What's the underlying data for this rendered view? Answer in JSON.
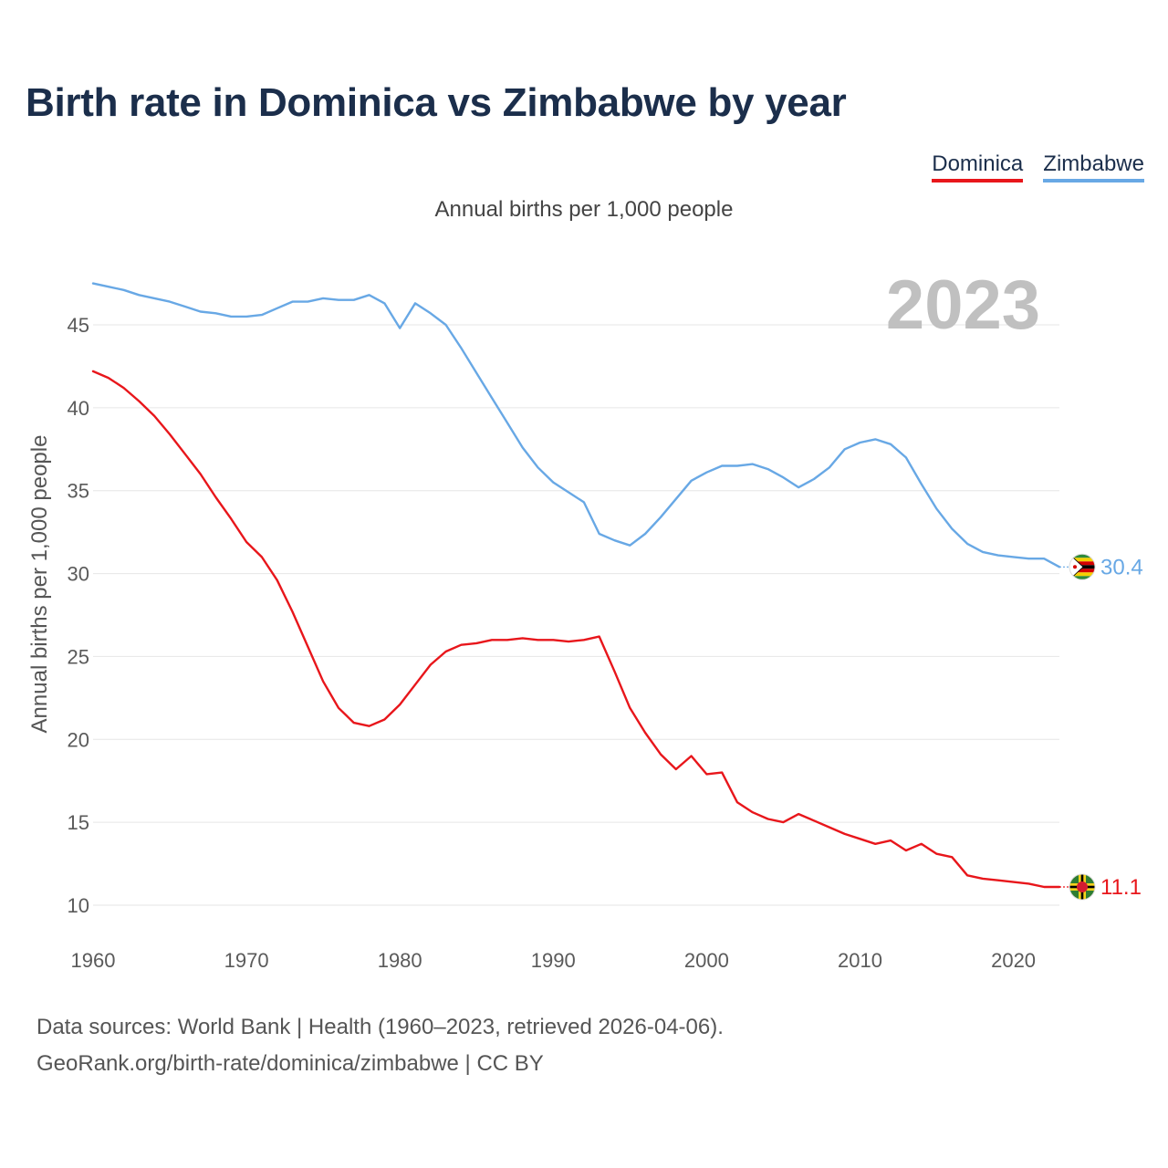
{
  "title": "Birth rate in Dominica vs Zimbabwe by year",
  "subtitle": "Annual births per 1,000 people",
  "legend": [
    {
      "name": "Dominica",
      "color": "#e8161b"
    },
    {
      "name": "Zimbabwe",
      "color": "#68a8e5"
    }
  ],
  "footer": {
    "source": "Data sources: World Bank | Health (1960–2023, retrieved 2026-04-06).",
    "url": "GeoRank.org/birth-rate/dominica/zimbabwe | CC BY"
  },
  "chart_data": {
    "type": "line",
    "title": "Birth rate in Dominica vs Zimbabwe by year",
    "ylabel": "Annual births per 1,000 people",
    "xlabel": "",
    "year_label": "2023",
    "xlim": [
      1960,
      2023
    ],
    "ylim": [
      10,
      48
    ],
    "x_ticks": [
      1960,
      1970,
      1980,
      1990,
      2000,
      2010,
      2020
    ],
    "y_ticks": [
      10,
      15,
      20,
      25,
      30,
      35,
      40,
      45
    ],
    "x": [
      1960,
      1961,
      1962,
      1963,
      1964,
      1965,
      1966,
      1967,
      1968,
      1969,
      1970,
      1971,
      1972,
      1973,
      1974,
      1975,
      1976,
      1977,
      1978,
      1979,
      1980,
      1981,
      1982,
      1983,
      1984,
      1985,
      1986,
      1987,
      1988,
      1989,
      1990,
      1991,
      1992,
      1993,
      1994,
      1995,
      1996,
      1997,
      1998,
      1999,
      2000,
      2001,
      2002,
      2003,
      2004,
      2005,
      2006,
      2007,
      2008,
      2009,
      2010,
      2011,
      2012,
      2013,
      2014,
      2015,
      2016,
      2017,
      2018,
      2019,
      2020,
      2021,
      2022,
      2023
    ],
    "series": [
      {
        "name": "Dominica",
        "color": "#e8161b",
        "end_label": "11.1",
        "values": [
          42.2,
          41.8,
          41.2,
          40.4,
          39.5,
          38.4,
          37.2,
          36.0,
          34.6,
          33.3,
          31.9,
          31.0,
          29.6,
          27.7,
          25.6,
          23.5,
          21.9,
          21.0,
          20.8,
          21.2,
          22.1,
          23.3,
          24.5,
          25.3,
          25.7,
          25.8,
          26.0,
          26.0,
          26.1,
          26.0,
          26.0,
          25.9,
          26.0,
          26.2,
          24.1,
          21.9,
          20.4,
          19.1,
          18.2,
          19.0,
          17.9,
          18.0,
          16.2,
          15.6,
          15.2,
          15.0,
          15.5,
          15.1,
          14.7,
          14.3,
          14.0,
          13.7,
          13.9,
          13.3,
          13.7,
          13.1,
          12.9,
          11.8,
          11.6,
          11.5,
          11.4,
          11.3,
          11.1,
          11.1
        ]
      },
      {
        "name": "Zimbabwe",
        "color": "#68a8e5",
        "end_label": "30.4",
        "values": [
          47.5,
          47.3,
          47.1,
          46.8,
          46.6,
          46.4,
          46.1,
          45.8,
          45.7,
          45.5,
          45.5,
          45.6,
          46.0,
          46.4,
          46.4,
          46.6,
          46.5,
          46.5,
          46.8,
          46.3,
          44.8,
          46.3,
          45.7,
          45.0,
          43.6,
          42.1,
          40.6,
          39.1,
          37.6,
          36.4,
          35.5,
          34.9,
          34.3,
          32.4,
          32.0,
          31.7,
          32.4,
          33.4,
          34.5,
          35.6,
          36.1,
          36.5,
          36.5,
          36.6,
          36.3,
          35.8,
          35.2,
          35.7,
          36.4,
          37.5,
          37.9,
          38.1,
          37.8,
          37.0,
          35.4,
          33.9,
          32.7,
          31.8,
          31.3,
          31.1,
          31.0,
          30.9,
          30.9,
          30.4
        ]
      }
    ]
  }
}
